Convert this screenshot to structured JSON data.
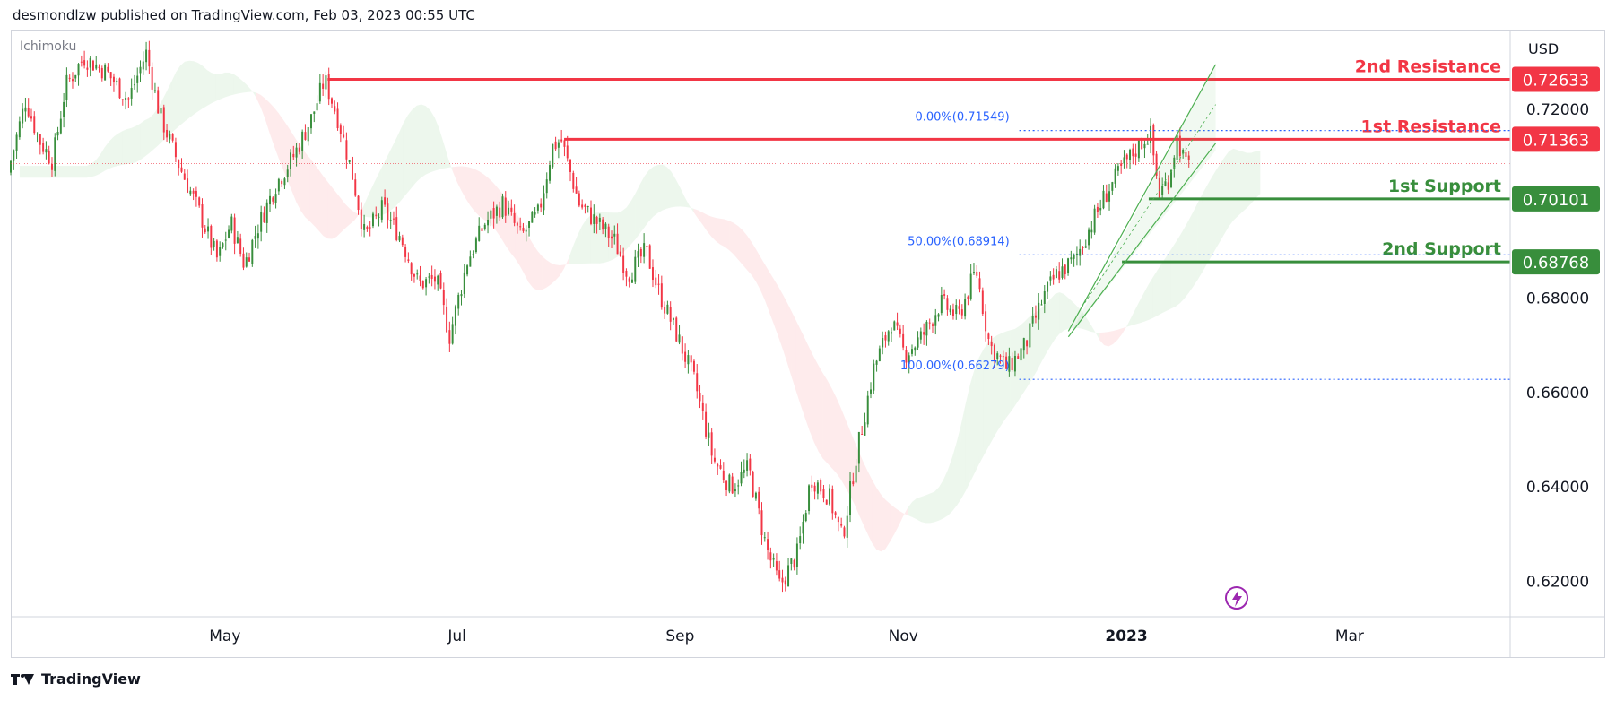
{
  "header": {
    "published_by": "desmondlzw published on TradingView.com, Feb 03, 2023 00:55 UTC"
  },
  "footer": {
    "brand": "TradingView"
  },
  "chart_data": {
    "type": "candlestick",
    "indicator_label": "Ichimoku",
    "currency": "USD",
    "x_tick_labels": [
      "May",
      "Jul",
      "Sep",
      "Nov",
      "2023",
      "Mar"
    ],
    "y_tick_labels": [
      "0.72000",
      "0.68000",
      "0.66000",
      "0.64000",
      "0.62000"
    ],
    "ylim": [
      0.6125,
      0.7365
    ],
    "levels": [
      {
        "name": "2nd Resistance",
        "value": 0.72633,
        "label": "0.72633",
        "color": "#f23645"
      },
      {
        "name": "1st Resistance",
        "value": 0.71363,
        "label": "0.71363",
        "color": "#f23645"
      },
      {
        "name": "1st Support",
        "value": 0.70101,
        "label": "0.70101",
        "color": "#388e3c"
      },
      {
        "name": "2nd Support",
        "value": 0.68768,
        "label": "0.68768",
        "color": "#388e3c"
      }
    ],
    "fibonacci": [
      {
        "label": "0.00%(0.71549)",
        "value": 0.71549
      },
      {
        "label": "50.00%(0.68914)",
        "value": 0.68914
      },
      {
        "label": "100.00%(0.66279)",
        "value": 0.66279
      }
    ],
    "price_path": [
      {
        "t": 0,
        "p": 0.7065
      },
      {
        "t": 4,
        "p": 0.722
      },
      {
        "t": 7,
        "p": 0.7135
      },
      {
        "t": 10,
        "p": 0.709
      },
      {
        "t": 13,
        "p": 0.725
      },
      {
        "t": 17,
        "p": 0.731
      },
      {
        "t": 22,
        "p": 0.728
      },
      {
        "t": 27,
        "p": 0.722
      },
      {
        "t": 31,
        "p": 0.732
      },
      {
        "t": 34,
        "p": 0.719
      },
      {
        "t": 38,
        "p": 0.709
      },
      {
        "t": 43,
        "p": 0.698
      },
      {
        "t": 47,
        "p": 0.688
      },
      {
        "t": 50,
        "p": 0.696
      },
      {
        "t": 53,
        "p": 0.687
      },
      {
        "t": 56,
        "p": 0.695
      },
      {
        "t": 60,
        "p": 0.704
      },
      {
        "t": 64,
        "p": 0.71
      },
      {
        "t": 68,
        "p": 0.718
      },
      {
        "t": 71,
        "p": 0.7263
      },
      {
        "t": 74,
        "p": 0.718
      },
      {
        "t": 77,
        "p": 0.707
      },
      {
        "t": 80,
        "p": 0.693
      },
      {
        "t": 84,
        "p": 0.699
      },
      {
        "t": 88,
        "p": 0.693
      },
      {
        "t": 92,
        "p": 0.683
      },
      {
        "t": 96,
        "p": 0.684
      },
      {
        "t": 99,
        "p": 0.672
      },
      {
        "t": 103,
        "p": 0.688
      },
      {
        "t": 107,
        "p": 0.696
      },
      {
        "t": 111,
        "p": 0.7
      },
      {
        "t": 115,
        "p": 0.693
      },
      {
        "t": 119,
        "p": 0.698
      },
      {
        "t": 122,
        "p": 0.712
      },
      {
        "t": 124,
        "p": 0.7136
      },
      {
        "t": 128,
        "p": 0.7
      },
      {
        "t": 132,
        "p": 0.696
      },
      {
        "t": 136,
        "p": 0.692
      },
      {
        "t": 139,
        "p": 0.685
      },
      {
        "t": 143,
        "p": 0.69
      },
      {
        "t": 146,
        "p": 0.681
      },
      {
        "t": 150,
        "p": 0.672
      },
      {
        "t": 154,
        "p": 0.662
      },
      {
        "t": 158,
        "p": 0.646
      },
      {
        "t": 162,
        "p": 0.64
      },
      {
        "t": 166,
        "p": 0.644
      },
      {
        "t": 170,
        "p": 0.627
      },
      {
        "t": 173,
        "p": 0.619
      },
      {
        "t": 177,
        "p": 0.626
      },
      {
        "t": 180,
        "p": 0.642
      },
      {
        "t": 184,
        "p": 0.638
      },
      {
        "t": 187,
        "p": 0.629
      },
      {
        "t": 190,
        "p": 0.646
      },
      {
        "t": 194,
        "p": 0.665
      },
      {
        "t": 198,
        "p": 0.675
      },
      {
        "t": 201,
        "p": 0.668
      },
      {
        "t": 205,
        "p": 0.672
      },
      {
        "t": 209,
        "p": 0.679
      },
      {
        "t": 213,
        "p": 0.676
      },
      {
        "t": 217,
        "p": 0.686
      },
      {
        "t": 220,
        "p": 0.67
      },
      {
        "t": 224,
        "p": 0.665
      },
      {
        "t": 228,
        "p": 0.67
      },
      {
        "t": 232,
        "p": 0.68
      },
      {
        "t": 235,
        "p": 0.685
      },
      {
        "t": 239,
        "p": 0.688
      },
      {
        "t": 243,
        "p": 0.696
      },
      {
        "t": 246,
        "p": 0.702
      },
      {
        "t": 250,
        "p": 0.708
      },
      {
        "t": 254,
        "p": 0.713
      },
      {
        "t": 256,
        "p": 0.715
      },
      {
        "t": 258,
        "p": 0.702
      },
      {
        "t": 260,
        "p": 0.705
      },
      {
        "t": 262,
        "p": 0.714
      },
      {
        "t": 264,
        "p": 0.708
      }
    ],
    "time_range": [
      0,
      336
    ],
    "x_ticks_t": [
      48,
      100,
      150,
      200,
      250,
      300
    ],
    "current_price": 0.7085
  }
}
